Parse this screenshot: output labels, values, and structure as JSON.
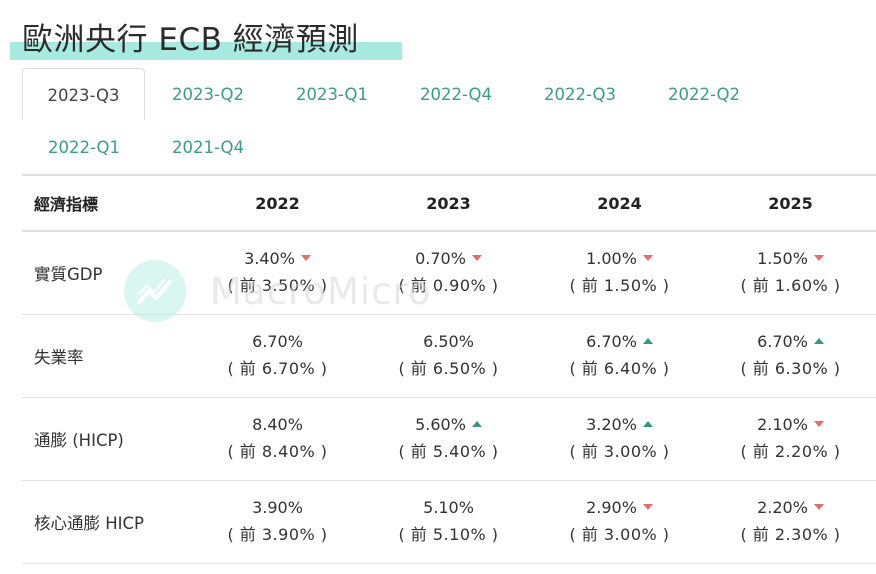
{
  "header": {
    "title": "歐洲央行 ECB 經濟預測"
  },
  "tabs": [
    {
      "label": "2023-Q3",
      "active": true
    },
    {
      "label": "2023-Q2"
    },
    {
      "label": "2023-Q1"
    },
    {
      "label": "2022-Q4"
    },
    {
      "label": "2022-Q3"
    },
    {
      "label": "2022-Q2"
    },
    {
      "label": "2022-Q1"
    },
    {
      "label": "2021-Q4"
    }
  ],
  "table": {
    "headers": [
      "經濟指標",
      "2022",
      "2023",
      "2024",
      "2025"
    ],
    "rows": [
      {
        "label": "實質GDP",
        "cells": [
          {
            "value": "3.40%",
            "prev": "( 前 3.50% )",
            "trend": "down"
          },
          {
            "value": "0.70%",
            "prev": "( 前 0.90% )",
            "trend": "down"
          },
          {
            "value": "1.00%",
            "prev": "( 前 1.50% )",
            "trend": "down"
          },
          {
            "value": "1.50%",
            "prev": "( 前 1.60% )",
            "trend": "down"
          }
        ]
      },
      {
        "label": "失業率",
        "cells": [
          {
            "value": "6.70%",
            "prev": "( 前 6.70% )",
            "trend": "none"
          },
          {
            "value": "6.50%",
            "prev": "( 前 6.50% )",
            "trend": "none"
          },
          {
            "value": "6.70%",
            "prev": "( 前 6.40% )",
            "trend": "up"
          },
          {
            "value": "6.70%",
            "prev": "( 前 6.30% )",
            "trend": "up"
          }
        ]
      },
      {
        "label": "通膨 (HICP)",
        "cells": [
          {
            "value": "8.40%",
            "prev": "( 前 8.40% )",
            "trend": "none"
          },
          {
            "value": "5.60%",
            "prev": "( 前 5.40% )",
            "trend": "up"
          },
          {
            "value": "3.20%",
            "prev": "( 前 3.00% )",
            "trend": "up"
          },
          {
            "value": "2.10%",
            "prev": "( 前 2.20% )",
            "trend": "down"
          }
        ]
      },
      {
        "label": "核心通膨 HICP",
        "cells": [
          {
            "value": "3.90%",
            "prev": "( 前 3.90% )",
            "trend": "none"
          },
          {
            "value": "5.10%",
            "prev": "( 前 5.10% )",
            "trend": "none"
          },
          {
            "value": "2.90%",
            "prev": "( 前 3.00% )",
            "trend": "down"
          },
          {
            "value": "2.20%",
            "prev": "( 前 2.30% )",
            "trend": "down"
          }
        ]
      }
    ]
  },
  "watermark": {
    "text": "MacroMicro",
    "icon": "chart-line-icon"
  },
  "colors": {
    "accent": "#3a9c86",
    "highlight": "#a7ebe0",
    "down": "#e26d6d",
    "up": "#2f9c82"
  }
}
